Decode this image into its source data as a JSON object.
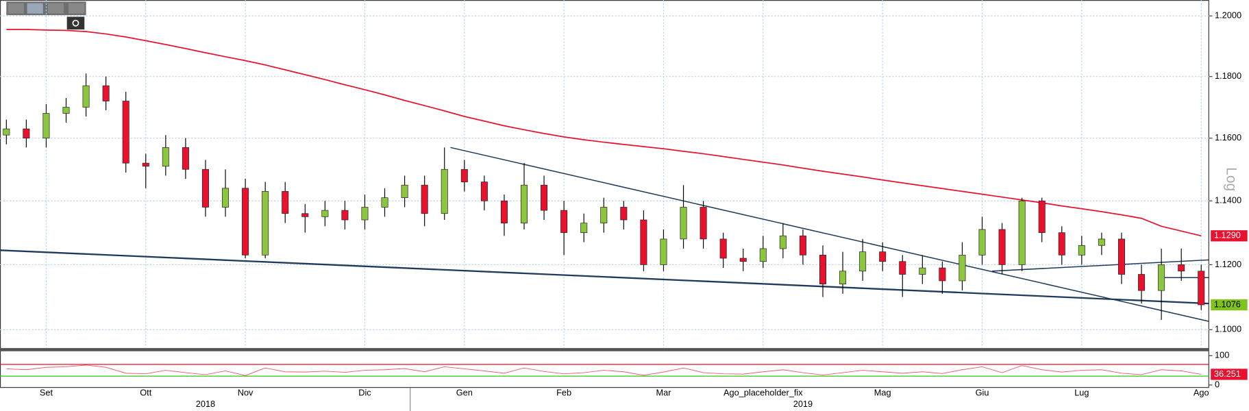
{
  "chart_data": {
    "type": "candlestick",
    "categories": [
      null,
      null,
      "Set",
      null,
      null,
      null,
      null,
      "Ott",
      null,
      null,
      null,
      null,
      "Nov",
      null,
      null,
      null,
      null,
      null,
      "Dic",
      null,
      null,
      null,
      null,
      "Gen",
      null,
      null,
      null,
      null,
      "Feb",
      null,
      null,
      null,
      null,
      "Mar",
      null,
      null,
      null,
      null,
      "Ago_placeholder_fix",
      null,
      null,
      null,
      null,
      null,
      "Mag",
      null,
      null,
      null,
      null,
      "Giu",
      null,
      null,
      null,
      null,
      "Lug",
      null,
      null,
      null,
      null,
      null,
      "Ago"
    ],
    "year_labels": [
      null,
      null,
      null,
      null,
      null,
      null,
      null,
      null,
      null,
      null,
      "2018",
      null,
      null,
      null,
      null,
      null,
      null,
      null,
      null,
      null,
      null,
      null,
      null,
      null,
      null,
      null,
      null,
      null,
      null,
      null,
      null,
      null,
      null,
      null,
      null,
      null,
      null,
      null,
      null,
      null,
      "2019",
      null,
      null,
      null,
      null,
      null,
      null,
      null,
      null,
      null,
      null,
      null,
      null,
      null,
      null,
      null,
      null,
      null,
      null,
      null,
      null
    ],
    "open": [
      1.161,
      1.163,
      1.16,
      1.168,
      1.17,
      1.177,
      1.172,
      1.152,
      1.151,
      1.157,
      1.15,
      1.138,
      1.144,
      1.123,
      1.143,
      1.136,
      1.135,
      1.137,
      1.134,
      1.138,
      1.141,
      1.145,
      1.136,
      1.15,
      1.146,
      1.14,
      1.133,
      1.145,
      1.137,
      1.13,
      1.133,
      1.138,
      1.134,
      1.12,
      1.128,
      1.138,
      1.128,
      1.122,
      1.121,
      1.125,
      1.129,
      1.123,
      1.114,
      1.118,
      1.124,
      1.121,
      1.117,
      1.119,
      1.115,
      1.123,
      1.131,
      1.12,
      1.14,
      1.13,
      1.123,
      1.126,
      1.128,
      1.117,
      1.112,
      1.12,
      1.118
    ],
    "high": [
      1.166,
      1.166,
      1.171,
      1.173,
      1.181,
      1.18,
      1.175,
      1.155,
      1.161,
      1.16,
      1.153,
      1.15,
      1.147,
      1.146,
      1.146,
      1.139,
      1.14,
      1.14,
      1.142,
      1.144,
      1.148,
      1.148,
      1.157,
      1.153,
      1.148,
      1.142,
      1.152,
      1.148,
      1.14,
      1.136,
      1.141,
      1.14,
      1.137,
      1.131,
      1.145,
      1.14,
      1.13,
      1.125,
      1.129,
      1.133,
      1.131,
      1.126,
      1.124,
      1.128,
      1.127,
      1.123,
      1.123,
      1.121,
      1.127,
      1.135,
      1.133,
      1.141,
      1.141,
      1.132,
      1.129,
      1.13,
      1.13,
      1.12,
      1.125,
      1.125,
      1.12
    ],
    "low": [
      1.158,
      1.157,
      1.157,
      1.165,
      1.167,
      1.169,
      1.149,
      1.144,
      1.148,
      1.147,
      1.135,
      1.135,
      1.122,
      1.122,
      1.133,
      1.13,
      1.132,
      1.131,
      1.131,
      1.135,
      1.138,
      1.132,
      1.134,
      1.143,
      1.137,
      1.129,
      1.131,
      1.134,
      1.123,
      1.127,
      1.13,
      1.131,
      1.118,
      1.118,
      1.125,
      1.125,
      1.119,
      1.118,
      1.119,
      1.122,
      1.12,
      1.11,
      1.111,
      1.115,
      1.118,
      1.11,
      1.114,
      1.111,
      1.112,
      1.12,
      1.117,
      1.118,
      1.127,
      1.12,
      1.12,
      1.123,
      1.114,
      1.108,
      1.103,
      1.115,
      1.106
    ],
    "close": [
      1.163,
      1.16,
      1.168,
      1.17,
      1.177,
      1.172,
      1.152,
      1.151,
      1.157,
      1.15,
      1.138,
      1.144,
      1.123,
      1.143,
      1.136,
      1.135,
      1.137,
      1.134,
      1.138,
      1.141,
      1.145,
      1.136,
      1.15,
      1.146,
      1.14,
      1.133,
      1.145,
      1.137,
      1.13,
      1.133,
      1.138,
      1.134,
      1.12,
      1.128,
      1.138,
      1.128,
      1.122,
      1.121,
      1.125,
      1.129,
      1.123,
      1.114,
      1.118,
      1.124,
      1.121,
      1.117,
      1.119,
      1.115,
      1.123,
      1.131,
      1.12,
      1.14,
      1.13,
      1.123,
      1.126,
      1.128,
      1.117,
      1.112,
      1.12,
      1.118,
      1.1076
    ],
    "up_color": "#8cc63f",
    "down_color": "#e8122f",
    "ma": {
      "color": "#e8122f",
      "values": [
        1.1955,
        1.1955,
        1.1953,
        1.1952,
        1.1948,
        1.194,
        1.193,
        1.1918,
        1.1905,
        1.1892,
        1.1878,
        1.1865,
        1.1852,
        1.1838,
        1.1822,
        1.1806,
        1.179,
        1.1773,
        1.1757,
        1.174,
        1.1722,
        1.1705,
        1.1688,
        1.167,
        1.1655,
        1.164,
        1.1627,
        1.1615,
        1.1604,
        1.1595,
        1.1587,
        1.158,
        1.1573,
        1.1566,
        1.1558,
        1.155,
        1.1541,
        1.1532,
        1.1523,
        1.1514,
        1.1504,
        1.1494,
        1.1485,
        1.1476,
        1.1466,
        1.1457,
        1.1448,
        1.1439,
        1.143,
        1.1421,
        1.1412,
        1.1403,
        1.1394,
        1.1384,
        1.1375,
        1.1366,
        1.1356,
        1.1345,
        1.132,
        1.1305,
        1.129
      ]
    },
    "trendlines": [
      {
        "color": "#1f3a5a",
        "x": [
          22.3,
          60.4
        ],
        "y": [
          1.157,
          1.1025
        ]
      },
      {
        "color": "#1f3a5a",
        "x": [
          -0.3,
          60.4
        ],
        "y": [
          1.1245,
          1.108
        ]
      },
      {
        "color": "#1f3a5a",
        "x": [
          49.5,
          60.4
        ],
        "y": [
          1.118,
          1.1215
        ]
      },
      {
        "color": "#1f3a5a",
        "x": [
          57.9,
          60.4
        ],
        "y": [
          1.116,
          1.116
        ]
      }
    ],
    "ylim": [
      1.0944,
      1.2053
    ],
    "yticks": [
      {
        "value": 1.1,
        "label": "1.1000"
      },
      {
        "value": 1.12,
        "label": "1.1200"
      },
      {
        "value": 1.14,
        "label": "1.1400"
      },
      {
        "value": 1.16,
        "label": "1.1600"
      },
      {
        "value": 1.18,
        "label": "1.1800"
      },
      {
        "value": 1.2,
        "label": "1.2000"
      }
    ],
    "log_scale": true,
    "y_scale_label": "Log",
    "grid": true,
    "price_tags": [
      {
        "value": 1.129,
        "label": "1.1290",
        "color": "#e8122f",
        "text_color": "#ffffff"
      },
      {
        "value": 1.1076,
        "label": "1.1076",
        "color": "#7fc31c",
        "text_color": "#000000"
      }
    ],
    "rsi": {
      "color": "#e8122f",
      "ylim": [
        -10,
        115
      ],
      "yticks": [
        0,
        100
      ],
      "levels": [
        {
          "value": 70,
          "color": "#e8122f"
        },
        {
          "value": 30,
          "color": "#34c21a"
        }
      ],
      "values": [
        55,
        52,
        60,
        62,
        68,
        60,
        40,
        38,
        50,
        42,
        35,
        48,
        32,
        58,
        45,
        44,
        47,
        43,
        50,
        52,
        56,
        45,
        62,
        55,
        48,
        40,
        58,
        46,
        38,
        42,
        50,
        45,
        33,
        44,
        58,
        42,
        38,
        37,
        45,
        52,
        42,
        34,
        42,
        50,
        45,
        40,
        45,
        39,
        52,
        62,
        42,
        66,
        52,
        44,
        50,
        52,
        40,
        35,
        52,
        48,
        36.251
      ],
      "tag": {
        "value": 36.251,
        "label": "36.251",
        "color": "#e8122f",
        "text_color": "#ffffff"
      }
    }
  }
}
